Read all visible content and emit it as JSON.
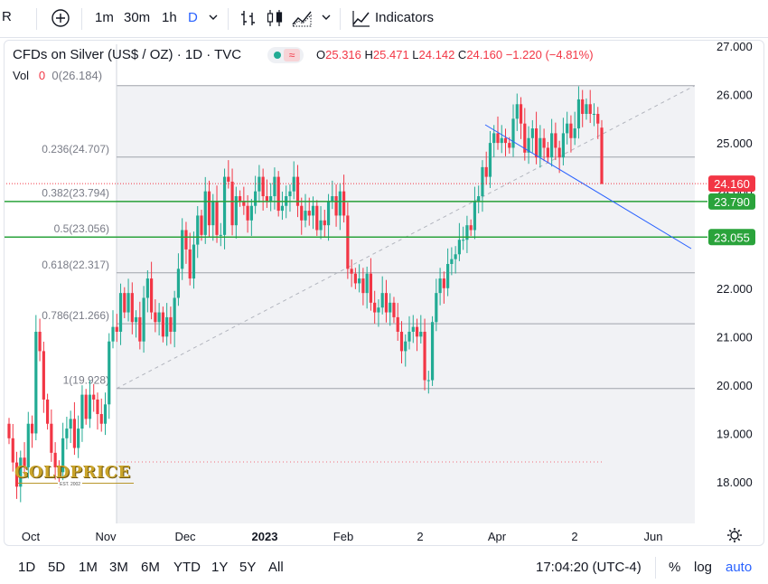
{
  "toolbar": {
    "add_icon": "plus-circle-icon",
    "intervals": [
      "1m",
      "30m",
      "1h",
      "D"
    ],
    "indicators_label": "Indicators"
  },
  "legend": {
    "title": "CFDs on Silver (US$ / OZ) · 1D · TVC",
    "ohlc": {
      "o_label": "O",
      "o": "25.316",
      "h_label": "H",
      "h": "25.471",
      "l_label": "L",
      "l": "24.142",
      "c_label": "C",
      "c": "24.160",
      "change": "−1.220 (−4.81%)"
    },
    "vol_label": "Vol",
    "vol_value": "0",
    "vol_ma": "0(26.184)"
  },
  "colors": {
    "up": "#22ab94",
    "down": "#f23645",
    "fib": "#a0a3ab",
    "green_line": "#2aa33b",
    "trend": "#2962ff",
    "accent": "#2962ff"
  },
  "chart_data": {
    "type": "candlestick",
    "y_axis_ticks": [
      "27.000",
      "26.000",
      "25.000",
      "24.000",
      "23.000",
      "22.000",
      "21.000",
      "20.000",
      "19.000",
      "18.000"
    ],
    "ylim": [
      17.1,
      27.2
    ],
    "x_axis_ticks": [
      "Oct",
      "Nov",
      "Dec",
      "2023",
      "Feb",
      "2",
      "Apr",
      "2",
      "Jun"
    ],
    "fib_levels": [
      {
        "label": "0.236(24.707)",
        "value": 24.707
      },
      {
        "label": "0.382(23.794)",
        "value": 23.794
      },
      {
        "label": "0.5(23.056)",
        "value": 23.056
      },
      {
        "label": "0.618(22.317)",
        "value": 22.317
      },
      {
        "label": "0.786(21.266)",
        "value": 21.266
      },
      {
        "label": "1(19.928)",
        "value": 19.928
      }
    ],
    "fib_top": 26.184,
    "horizontal_lines": [
      {
        "label": "23.790",
        "value": 23.79
      },
      {
        "label": "23.055",
        "value": 23.055
      }
    ],
    "last_price": {
      "label": "24.160",
      "value": 24.16
    },
    "close_series": [
      18.9,
      18.4,
      17.9,
      18.5,
      18.3,
      19.2,
      19.0,
      21.1,
      20.7,
      19.7,
      19.2,
      18.6,
      18.3,
      18.2,
      18.9,
      19.1,
      19.3,
      18.7,
      19.1,
      19.8,
      19.3,
      19.8,
      19.7,
      19.4,
      19.2,
      19.6,
      20.9,
      21.2,
      21.1,
      21.9,
      21.5,
      21.9,
      21.3,
      21.4,
      20.9,
      21.8,
      22.2,
      21.5,
      21.3,
      21.5,
      21.0,
      21.4,
      21.1,
      21.8,
      22.4,
      23.2,
      22.8,
      22.2,
      22.9,
      23.5,
      23.1,
      24.0,
      23.3,
      23.8,
      23.1,
      23.1,
      24.3,
      24.2,
      23.3,
      23.9,
      23.8,
      23.7,
      23.4,
      23.7,
      24.0,
      24.3,
      23.9,
      23.8,
      23.9,
      24.3,
      23.6,
      23.7,
      23.9,
      24.0,
      24.3,
      23.7,
      23.4,
      23.6,
      23.5,
      23.7,
      23.2,
      23.4,
      23.3,
      23.8,
      23.9,
      23.5,
      24.0,
      23.5,
      22.4,
      22.3,
      22.1,
      22.2,
      21.9,
      22.3,
      21.7,
      21.5,
      21.6,
      21.9,
      21.5,
      21.7,
      21.4,
      21.1,
      20.7,
      20.9,
      21.1,
      21.2,
      21.0,
      21.1,
      20.1,
      20.1,
      21.3,
      21.9,
      22.2,
      22.0,
      22.5,
      22.6,
      22.7,
      23.0,
      23.0,
      23.3,
      23.2,
      23.8,
      23.9,
      24.5,
      24.3,
      25.0,
      25.2,
      25.0,
      25.1,
      25.0,
      24.9,
      25.5,
      25.8,
      25.4,
      24.8,
      25.1,
      25.3,
      24.7,
      25.1,
      24.9,
      24.7,
      25.2,
      24.9,
      24.7,
      25.2,
      25.4,
      25.1,
      25.3,
      25.9,
      25.6,
      25.8,
      25.6,
      25.6,
      25.4,
      24.16
    ]
  },
  "watermark": {
    "brand": "GOLDPRICE",
    "est": "EST. 2002"
  },
  "bottom": {
    "ranges": [
      "1D",
      "5D",
      "1M",
      "3M",
      "6M",
      "YTD",
      "1Y",
      "5Y",
      "All"
    ],
    "clock": "17:04:20 (UTC-4)",
    "percent": "%",
    "log": "log",
    "auto": "auto"
  }
}
